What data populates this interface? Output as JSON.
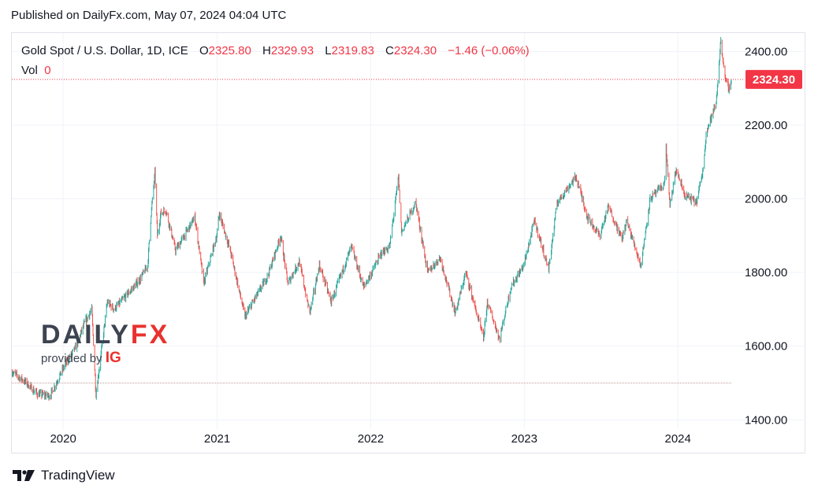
{
  "published": "Published on DailyFx.com, May 07, 2024 04:04 UTC",
  "legend": {
    "symbol": "Gold Spot / U.S. Dollar, 1D, ICE",
    "open_label": "O",
    "open": "2325.80",
    "high_label": "H",
    "high": "2329.93",
    "low_label": "L",
    "low": "2319.83",
    "close_label": "C",
    "close": "2324.30",
    "change": "−1.46 (−0.06%)",
    "vol_label": "Vol",
    "vol": "0"
  },
  "logo": {
    "word1": "DAILY",
    "word2": "FX",
    "byline": "provided by",
    "brand": "IG"
  },
  "footer": {
    "brand": "TradingView"
  },
  "colors": {
    "up": "#26a69a",
    "down": "#ef5350",
    "price_label": "#f23645",
    "grid": "#f0f3fa"
  },
  "chart_data": {
    "type": "candlestick",
    "title": "Gold Spot / U.S. Dollar, 1D, ICE",
    "ylim": [
      1375,
      2450
    ],
    "yticks": [
      1400,
      1600,
      1800,
      2000,
      2200,
      2400
    ],
    "ytick_labels": [
      "1400.00",
      "1600.00",
      "1800.00",
      "2000.00",
      "2200.00",
      "2400.00"
    ],
    "xticks": [
      "2020",
      "2021",
      "2022",
      "2023",
      "2024"
    ],
    "x_start": "2019-09-01",
    "x_end": "2024-05-07",
    "last_price": 2324.3,
    "last_price_label": "2324.30",
    "reference_line": 1500,
    "series": [
      {
        "values_by_date": [
          [
            "2019-09-01",
            1530
          ],
          [
            "2019-10-01",
            1505
          ],
          [
            "2019-11-01",
            1470
          ],
          [
            "2019-12-01",
            1465
          ],
          [
            "2020-01-01",
            1540
          ],
          [
            "2020-02-01",
            1600
          ],
          [
            "2020-02-20",
            1660
          ],
          [
            "2020-03-09",
            1700
          ],
          [
            "2020-03-19",
            1470
          ],
          [
            "2020-04-01",
            1590
          ],
          [
            "2020-04-15",
            1720
          ],
          [
            "2020-05-01",
            1700
          ],
          [
            "2020-06-01",
            1740
          ],
          [
            "2020-07-01",
            1780
          ],
          [
            "2020-07-20",
            1820
          ],
          [
            "2020-07-28",
            1960
          ],
          [
            "2020-08-06",
            2070
          ],
          [
            "2020-08-12",
            1900
          ],
          [
            "2020-08-20",
            1960
          ],
          [
            "2020-09-01",
            1970
          ],
          [
            "2020-09-24",
            1860
          ],
          [
            "2020-10-15",
            1900
          ],
          [
            "2020-11-09",
            1950
          ],
          [
            "2020-11-30",
            1770
          ],
          [
            "2020-12-31",
            1900
          ],
          [
            "2021-01-06",
            1960
          ],
          [
            "2021-02-01",
            1860
          ],
          [
            "2021-03-08",
            1680
          ],
          [
            "2021-04-01",
            1730
          ],
          [
            "2021-05-01",
            1790
          ],
          [
            "2021-06-01",
            1900
          ],
          [
            "2021-06-18",
            1770
          ],
          [
            "2021-07-15",
            1830
          ],
          [
            "2021-08-09",
            1690
          ],
          [
            "2021-09-01",
            1820
          ],
          [
            "2021-09-29",
            1720
          ],
          [
            "2021-11-16",
            1870
          ],
          [
            "2021-12-15",
            1760
          ],
          [
            "2022-01-03",
            1800
          ],
          [
            "2022-01-25",
            1850
          ],
          [
            "2022-02-15",
            1870
          ],
          [
            "2022-03-08",
            2060
          ],
          [
            "2022-03-15",
            1910
          ],
          [
            "2022-04-18",
            1990
          ],
          [
            "2022-05-16",
            1800
          ],
          [
            "2022-06-15",
            1840
          ],
          [
            "2022-07-21",
            1690
          ],
          [
            "2022-08-15",
            1800
          ],
          [
            "2022-09-26",
            1620
          ],
          [
            "2022-10-05",
            1720
          ],
          [
            "2022-11-03",
            1620
          ],
          [
            "2022-11-30",
            1760
          ],
          [
            "2022-12-31",
            1820
          ],
          [
            "2023-01-25",
            1940
          ],
          [
            "2023-02-28",
            1810
          ],
          [
            "2023-03-20",
            1990
          ],
          [
            "2023-05-04",
            2060
          ],
          [
            "2023-05-31",
            1950
          ],
          [
            "2023-06-29",
            1900
          ],
          [
            "2023-07-20",
            1980
          ],
          [
            "2023-08-21",
            1890
          ],
          [
            "2023-09-01",
            1940
          ],
          [
            "2023-10-05",
            1820
          ],
          [
            "2023-10-27",
            2000
          ],
          [
            "2023-11-30",
            2040
          ],
          [
            "2023-12-04",
            2140
          ],
          [
            "2023-12-13",
            1980
          ],
          [
            "2023-12-28",
            2080
          ],
          [
            "2024-01-17",
            2010
          ],
          [
            "2024-02-14",
            1990
          ],
          [
            "2024-03-01",
            2080
          ],
          [
            "2024-03-08",
            2180
          ],
          [
            "2024-04-01",
            2260
          ],
          [
            "2024-04-12",
            2430
          ],
          [
            "2024-04-23",
            2320
          ],
          [
            "2024-05-02",
            2300
          ],
          [
            "2024-05-07",
            2324
          ]
        ]
      }
    ]
  }
}
